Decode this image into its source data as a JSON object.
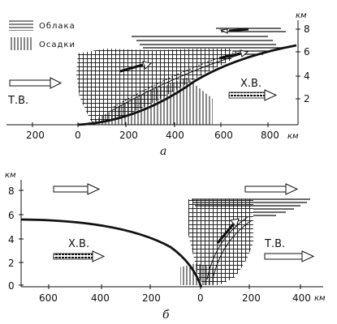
{
  "legend": {
    "clouds": "Облака",
    "precipitation": "Осадки"
  },
  "diagram_a": {
    "caption": "a",
    "left_mass": "Т.В.",
    "right_mass": "Х.В.",
    "x_ticks": [
      "200",
      "0",
      "200",
      "400",
      "600",
      "800"
    ],
    "x_unit": "км",
    "y_ticks": [
      "2",
      "4",
      "6",
      "8"
    ],
    "y_unit": "км"
  },
  "diagram_b": {
    "caption": "б",
    "left_mass": "Х.В.",
    "right_mass": "Т.В.",
    "x_ticks": [
      "600",
      "400",
      "200",
      "0",
      "200",
      "400"
    ],
    "x_unit": "км",
    "y_ticks": [
      "0",
      "2",
      "4",
      "6",
      "8"
    ],
    "y_unit": "км"
  },
  "colors": {
    "ink": "#111111",
    "background": "#ffffff"
  }
}
